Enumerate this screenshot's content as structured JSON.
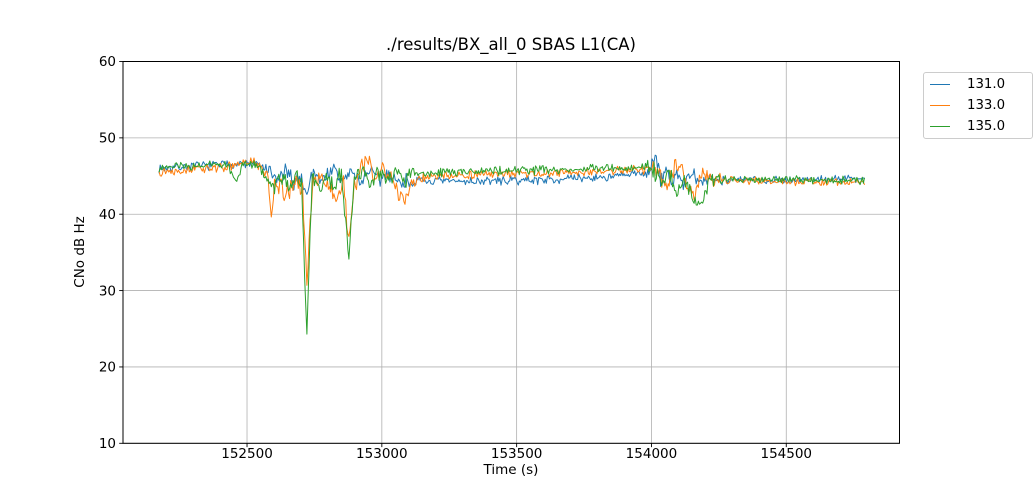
{
  "figure": {
    "background": "#ffffff"
  },
  "chart_data": {
    "type": "line",
    "title": "./results/BX_all_0 SBAS L1(CA)",
    "xlabel": "Time (s)",
    "ylabel": "CNo dB Hz",
    "xlim": [
      152040,
      154920
    ],
    "ylim": [
      10,
      60
    ],
    "xticks": [
      152500,
      153000,
      153500,
      154000,
      154500
    ],
    "yticks": [
      10,
      20,
      30,
      40,
      50,
      60
    ],
    "grid": true,
    "grid_color": "#b0b0b0",
    "spine_color": "#000000",
    "text_color": "#000000",
    "legend_border_color": "#cccccc",
    "legend_position": "upper right, clipped at figure right edge",
    "sample_step_s": 4,
    "series": [
      {
        "name": "131.0",
        "color": "#1f77b4",
        "seed": 7,
        "trend": [
          [
            152174,
            46.0
          ],
          [
            152300,
            46.3
          ],
          [
            152450,
            46.6
          ],
          [
            152540,
            46.5
          ],
          [
            152575,
            45.8
          ],
          [
            152610,
            44.3
          ],
          [
            152640,
            45.6
          ],
          [
            152670,
            44.2
          ],
          [
            152698,
            45.0
          ],
          [
            152722,
            42.6
          ],
          [
            152745,
            45.8
          ],
          [
            152780,
            44.4
          ],
          [
            152814,
            46.0
          ],
          [
            152850,
            44.3
          ],
          [
            152886,
            45.6
          ],
          [
            152920,
            44.2
          ],
          [
            152954,
            45.8
          ],
          [
            152990,
            44.3
          ],
          [
            153022,
            45.5
          ],
          [
            153058,
            44.2
          ],
          [
            153100,
            44.3
          ],
          [
            153260,
            44.3
          ],
          [
            153460,
            44.4
          ],
          [
            153660,
            44.6
          ],
          [
            153860,
            44.9
          ],
          [
            153990,
            45.5
          ],
          [
            154014,
            47.6
          ],
          [
            154034,
            44.3
          ],
          [
            154054,
            46.2
          ],
          [
            154074,
            43.6
          ],
          [
            154094,
            45.8
          ],
          [
            154118,
            43.8
          ],
          [
            154150,
            45.2
          ],
          [
            154182,
            43.9
          ],
          [
            154214,
            44.8
          ],
          [
            154262,
            44.5
          ],
          [
            154460,
            44.5
          ],
          [
            154660,
            44.6
          ],
          [
            154790,
            44.7
          ]
        ],
        "noise_env": [
          [
            152174,
            0.5
          ],
          [
            152560,
            0.55
          ],
          [
            152600,
            1.1
          ],
          [
            153090,
            1.0
          ],
          [
            153140,
            0.55
          ],
          [
            153960,
            0.5
          ],
          [
            154010,
            1.0
          ],
          [
            154240,
            0.9
          ],
          [
            154274,
            0.45
          ],
          [
            154790,
            0.45
          ]
        ]
      },
      {
        "name": "133.0",
        "color": "#ff7f0e",
        "seed": 13,
        "trend": [
          [
            152174,
            45.6
          ],
          [
            152300,
            45.9
          ],
          [
            152430,
            46.2
          ],
          [
            152520,
            46.9
          ],
          [
            152556,
            46.1
          ],
          [
            152578,
            44.6
          ],
          [
            152590,
            39.6
          ],
          [
            152602,
            44.8
          ],
          [
            152626,
            43.2
          ],
          [
            152654,
            42.6
          ],
          [
            152682,
            44.3
          ],
          [
            152706,
            43.2
          ],
          [
            152722,
            31.0
          ],
          [
            152742,
            43.8
          ],
          [
            152770,
            45.4
          ],
          [
            152798,
            43.4
          ],
          [
            152830,
            42.2
          ],
          [
            152858,
            44.2
          ],
          [
            152878,
            36.5
          ],
          [
            152898,
            43.8
          ],
          [
            152926,
            46.3
          ],
          [
            152950,
            47.0
          ],
          [
            152974,
            44.2
          ],
          [
            153002,
            46.4
          ],
          [
            153030,
            45.0
          ],
          [
            153062,
            42.6
          ],
          [
            153086,
            41.6
          ],
          [
            153106,
            44.2
          ],
          [
            153160,
            44.9
          ],
          [
            153360,
            45.2
          ],
          [
            153560,
            45.3
          ],
          [
            153760,
            45.5
          ],
          [
            153950,
            45.9
          ],
          [
            154006,
            46.0
          ],
          [
            154034,
            44.8
          ],
          [
            154058,
            43.4
          ],
          [
            154086,
            46.3
          ],
          [
            154110,
            47.1
          ],
          [
            154134,
            43.2
          ],
          [
            154162,
            42.6
          ],
          [
            154190,
            45.4
          ],
          [
            154234,
            44.6
          ],
          [
            154320,
            44.4
          ],
          [
            154520,
            44.3
          ],
          [
            154790,
            44.2
          ]
        ],
        "noise_env": [
          [
            152174,
            0.5
          ],
          [
            152550,
            0.55
          ],
          [
            152600,
            1.2
          ],
          [
            153090,
            1.1
          ],
          [
            153140,
            0.55
          ],
          [
            153960,
            0.5
          ],
          [
            154010,
            1.0
          ],
          [
            154240,
            0.9
          ],
          [
            154274,
            0.45
          ],
          [
            154790,
            0.45
          ]
        ]
      },
      {
        "name": "135.0",
        "color": "#2ca02c",
        "seed": 23,
        "trend": [
          [
            152174,
            46.1
          ],
          [
            152300,
            46.3
          ],
          [
            152430,
            46.6
          ],
          [
            152458,
            44.2
          ],
          [
            152482,
            46.4
          ],
          [
            152540,
            46.6
          ],
          [
            152572,
            44.6
          ],
          [
            152602,
            43.6
          ],
          [
            152626,
            45.4
          ],
          [
            152654,
            43.1
          ],
          [
            152678,
            45.0
          ],
          [
            152702,
            44.2
          ],
          [
            152722,
            24.7
          ],
          [
            152742,
            45.4
          ],
          [
            152768,
            43.1
          ],
          [
            152794,
            45.4
          ],
          [
            152822,
            43.4
          ],
          [
            152850,
            45.2
          ],
          [
            152878,
            34.3
          ],
          [
            152898,
            44.6
          ],
          [
            152930,
            46.1
          ],
          [
            152960,
            43.6
          ],
          [
            152992,
            45.5
          ],
          [
            153022,
            44.1
          ],
          [
            153054,
            46.0
          ],
          [
            153082,
            44.6
          ],
          [
            153110,
            45.3
          ],
          [
            153260,
            45.6
          ],
          [
            153460,
            45.7
          ],
          [
            153660,
            45.8
          ],
          [
            153860,
            46.0
          ],
          [
            154002,
            46.2
          ],
          [
            154038,
            44.1
          ],
          [
            154066,
            45.6
          ],
          [
            154098,
            42.6
          ],
          [
            154126,
            44.6
          ],
          [
            154154,
            41.7
          ],
          [
            154186,
            40.8
          ],
          [
            154214,
            44.4
          ],
          [
            154270,
            44.6
          ],
          [
            154460,
            44.5
          ],
          [
            154660,
            44.5
          ],
          [
            154790,
            44.4
          ]
        ],
        "noise_env": [
          [
            152174,
            0.5
          ],
          [
            152550,
            0.55
          ],
          [
            152600,
            1.15
          ],
          [
            153090,
            1.05
          ],
          [
            153140,
            0.55
          ],
          [
            153960,
            0.5
          ],
          [
            154010,
            1.0
          ],
          [
            154240,
            0.9
          ],
          [
            154274,
            0.45
          ],
          [
            154790,
            0.45
          ]
        ]
      }
    ]
  }
}
